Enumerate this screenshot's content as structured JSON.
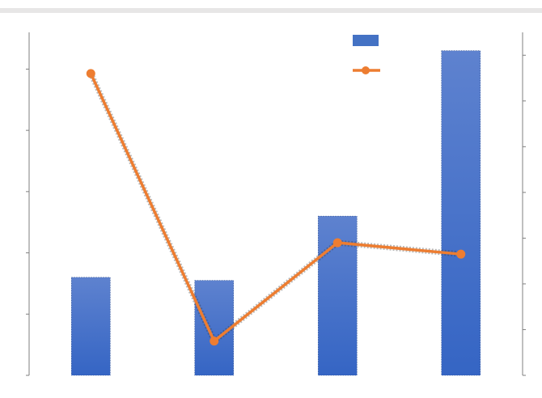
{
  "chart_data": {
    "type": "bar",
    "categories": [
      "",
      "",
      "",
      ""
    ],
    "series": [
      {
        "type": "bar",
        "values": [
          1.6,
          1.55,
          2.6,
          5.3
        ]
      },
      {
        "type": "line",
        "values": [
          6.6,
          0.75,
          2.9,
          2.65
        ]
      }
    ],
    "ylim_left": [
      0,
      5.6
    ],
    "ylim_right": [
      0,
      7.5
    ],
    "yticks_left": [
      0,
      1,
      2,
      3,
      4,
      5
    ],
    "yticks_right": [
      0,
      1,
      2,
      3,
      4,
      5,
      6,
      7
    ],
    "legend": "top-right",
    "grid": false,
    "colors": {
      "bar": "#4472c4",
      "line": "#ed7d31",
      "band": "#e7e6e6",
      "axis": "#7f7f7f"
    }
  }
}
